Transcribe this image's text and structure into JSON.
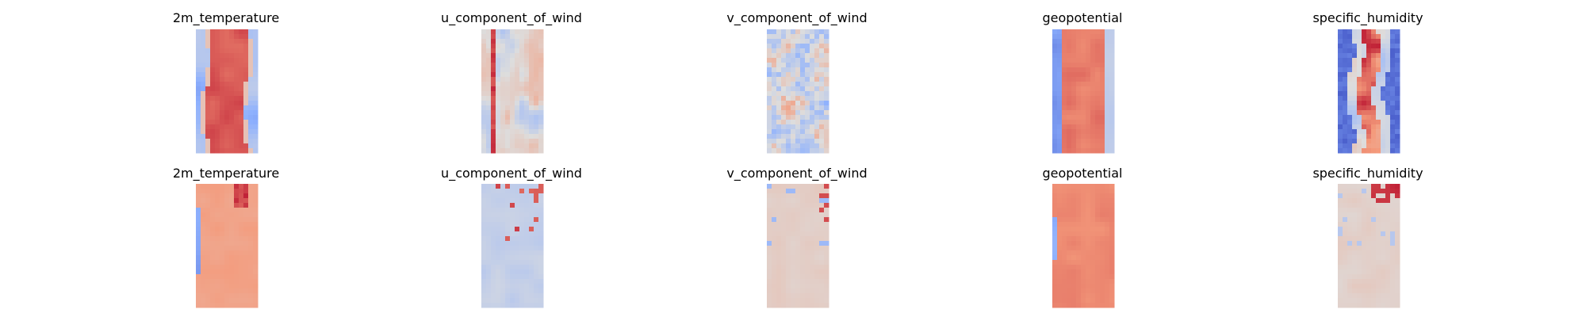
{
  "chart_data": {
    "type": "heatmap",
    "colormap": "coolwarm",
    "axes": "off",
    "grid": false,
    "legend": "none",
    "rows": [
      {
        "panels": [
          {
            "title": "2m_temperature"
          },
          {
            "title": "u_component_of_wind"
          },
          {
            "title": "v_component_of_wind"
          },
          {
            "title": "geopotential"
          },
          {
            "title": "specific_humidity"
          }
        ]
      },
      {
        "panels": [
          {
            "title": "2m_temperature"
          },
          {
            "title": "u_component_of_wind"
          },
          {
            "title": "v_component_of_wind"
          },
          {
            "title": "geopotential"
          },
          {
            "title": "specific_humidity"
          }
        ]
      }
    ]
  }
}
